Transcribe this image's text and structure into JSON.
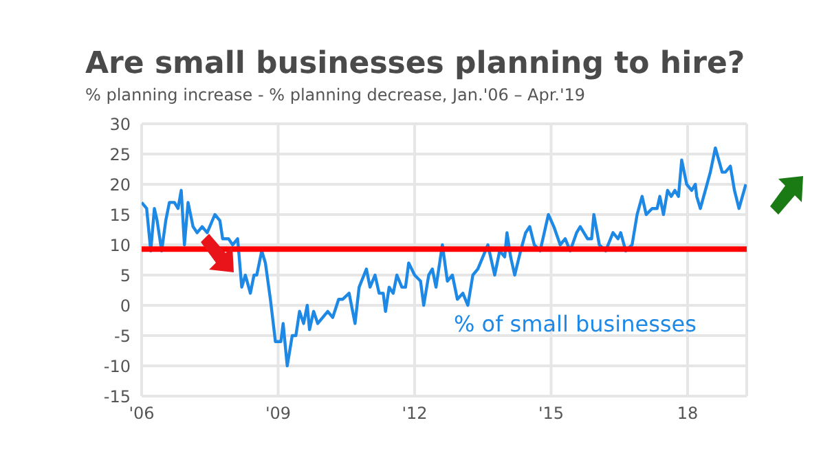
{
  "chart_data": {
    "type": "line",
    "title": "Are small businesses planning to hire?",
    "subtitle": "% planning increase - % planning decrease, Jan.'06 – Apr.'19",
    "x": [
      2006.0,
      2006.11,
      2006.2,
      2006.28,
      2006.34,
      2006.44,
      2006.53,
      2006.61,
      2006.72,
      2006.8,
      2006.87,
      2006.94,
      2007.02,
      2007.13,
      2007.22,
      2007.33,
      2007.44,
      2007.61,
      2007.72,
      2007.78,
      2007.91,
      2008.0,
      2008.11,
      2008.2,
      2008.28,
      2008.39,
      2008.47,
      2008.53,
      2008.64,
      2008.72,
      2008.83,
      2008.94,
      2009.06,
      2009.11,
      2009.2,
      2009.31,
      2009.39,
      2009.47,
      2009.56,
      2009.64,
      2009.69,
      2009.78,
      2009.87,
      2010.09,
      2010.2,
      2010.33,
      2010.42,
      2010.56,
      2010.69,
      2010.78,
      2010.94,
      2011.02,
      2011.13,
      2011.22,
      2011.31,
      2011.36,
      2011.44,
      2011.53,
      2011.61,
      2011.72,
      2011.8,
      2011.87,
      2012.0,
      2012.13,
      2012.2,
      2012.31,
      2012.39,
      2012.47,
      2012.61,
      2012.72,
      2012.83,
      2012.94,
      2013.06,
      2013.17,
      2013.28,
      2013.39,
      2013.5,
      2013.61,
      2013.76,
      2013.87,
      2013.98,
      2014.03,
      2014.11,
      2014.2,
      2014.33,
      2014.44,
      2014.53,
      2014.63,
      2014.76,
      2014.94,
      2015.06,
      2015.2,
      2015.31,
      2015.42,
      2015.56,
      2015.64,
      2015.8,
      2015.89,
      2015.94,
      2016.06,
      2016.2,
      2016.36,
      2016.47,
      2016.53,
      2016.64,
      2016.78,
      2016.89,
      2017.0,
      2017.09,
      2017.22,
      2017.33,
      2017.39,
      2017.47,
      2017.56,
      2017.64,
      2017.72,
      2017.8,
      2017.87,
      2017.98,
      2018.09,
      2018.17,
      2018.2,
      2018.28,
      2018.39,
      2018.5,
      2018.61,
      2018.76,
      2018.83,
      2018.94,
      2019.03,
      2019.13,
      2019.28
    ],
    "series": [
      {
        "name": "% of small businesses",
        "color": "#1e88e5",
        "values": [
          17,
          16,
          9,
          16,
          14,
          9,
          14,
          17,
          17,
          16,
          19,
          10,
          17,
          13,
          12,
          13,
          12,
          15,
          14,
          11,
          11,
          10,
          11,
          3,
          5,
          2,
          5,
          5,
          9,
          7,
          1,
          -6,
          -6,
          -3,
          -10,
          -5,
          -5,
          -1,
          -3,
          0,
          -4,
          -1,
          -3,
          -1,
          -2,
          1,
          1,
          2,
          -3,
          3,
          6,
          3,
          5,
          2,
          2,
          -1,
          3,
          2,
          5,
          3,
          3,
          7,
          5,
          4,
          0,
          5,
          6,
          3,
          10,
          4,
          5,
          1,
          2,
          0,
          5,
          6,
          8,
          10,
          5,
          9,
          8,
          12,
          8,
          5,
          9,
          12,
          13,
          10,
          9,
          15,
          13,
          10,
          11,
          9,
          12,
          13,
          11,
          11,
          15,
          10,
          9,
          12,
          11,
          12,
          9,
          10,
          15,
          18,
          15,
          16,
          16,
          18,
          15,
          19,
          18,
          19,
          18,
          24,
          20,
          19,
          20,
          18,
          16,
          19,
          22,
          26,
          22,
          22,
          23,
          19,
          16,
          20
        ]
      }
    ],
    "xlim": [
      2006,
      2019.3
    ],
    "xticks": [
      {
        "value": 2006,
        "label": "'06"
      },
      {
        "value": 2009,
        "label": "'09"
      },
      {
        "value": 2012,
        "label": "'12"
      },
      {
        "value": 2015,
        "label": "'15"
      },
      {
        "value": 2018,
        "label": "18"
      }
    ],
    "ylim": [
      -15,
      30
    ],
    "yticks": [
      -15,
      -10,
      -5,
      0,
      5,
      10,
      15,
      20,
      25,
      30
    ],
    "grid": true,
    "marker": "none",
    "line_style": "solid",
    "ref_lines": [
      {
        "axis": "y",
        "value": 9.3,
        "color": "#ff0000"
      }
    ]
  }
}
